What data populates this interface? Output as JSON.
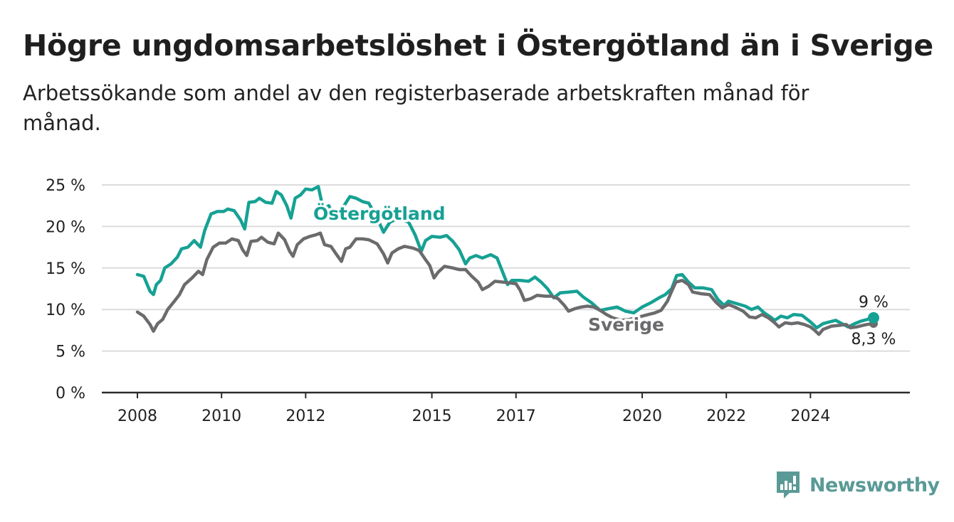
{
  "header": {
    "title": "Högre ungdomsarbetslöshet i Östergötland än i Sverige",
    "subtitle": "Arbetssökande som andel av den registerbaserade arbetskraften månad för månad."
  },
  "brand": {
    "name": "Newsworthy",
    "icon": "newsworthy-chart-icon",
    "color": "#5a9a96"
  },
  "chart_data": {
    "type": "line",
    "xlim": [
      2008,
      2025.5
    ],
    "ylim": [
      0,
      25
    ],
    "x_ticks": [
      {
        "value": 2008,
        "label": "2008"
      },
      {
        "value": 2010,
        "label": "2010"
      },
      {
        "value": 2012,
        "label": "2012"
      },
      {
        "value": 2015,
        "label": "2015"
      },
      {
        "value": 2017,
        "label": "2017"
      },
      {
        "value": 2020,
        "label": "2020"
      },
      {
        "value": 2022,
        "label": "2022"
      },
      {
        "value": 2024,
        "label": "2024"
      }
    ],
    "y_ticks": [
      {
        "value": 0,
        "label": "0 %"
      },
      {
        "value": 5,
        "label": "5 %"
      },
      {
        "value": 10,
        "label": "10 %"
      },
      {
        "value": 15,
        "label": "15 %"
      },
      {
        "value": 20,
        "label": "20 %"
      },
      {
        "value": 25,
        "label": "25 %"
      }
    ],
    "grid": true,
    "series": [
      {
        "name": "Östergötland",
        "color": "#16a194",
        "end_label": "9 %",
        "points": [
          [
            2008.0,
            14.2
          ],
          [
            2008.15,
            14.0
          ],
          [
            2008.3,
            12.2
          ],
          [
            2008.38,
            11.8
          ],
          [
            2008.45,
            13.0
          ],
          [
            2008.55,
            13.5
          ],
          [
            2008.65,
            15.0
          ],
          [
            2008.8,
            15.5
          ],
          [
            2008.95,
            16.3
          ],
          [
            2009.05,
            17.3
          ],
          [
            2009.2,
            17.5
          ],
          [
            2009.35,
            18.3
          ],
          [
            2009.5,
            17.5
          ],
          [
            2009.6,
            19.5
          ],
          [
            2009.75,
            21.5
          ],
          [
            2009.9,
            21.8
          ],
          [
            2010.05,
            21.8
          ],
          [
            2010.15,
            22.1
          ],
          [
            2010.3,
            21.9
          ],
          [
            2010.45,
            20.8
          ],
          [
            2010.55,
            19.7
          ],
          [
            2010.65,
            22.9
          ],
          [
            2010.8,
            23.0
          ],
          [
            2010.9,
            23.4
          ],
          [
            2011.05,
            22.9
          ],
          [
            2011.2,
            22.8
          ],
          [
            2011.3,
            24.2
          ],
          [
            2011.42,
            23.8
          ],
          [
            2011.55,
            22.5
          ],
          [
            2011.65,
            21.0
          ],
          [
            2011.75,
            23.4
          ],
          [
            2011.88,
            23.8
          ],
          [
            2012.0,
            24.5
          ],
          [
            2012.15,
            24.4
          ],
          [
            2012.3,
            24.8
          ],
          [
            2012.42,
            22.0
          ],
          [
            2012.55,
            22.5
          ],
          [
            2012.7,
            20.8
          ],
          [
            2012.85,
            22.0
          ],
          [
            2013.05,
            23.6
          ],
          [
            2013.2,
            23.4
          ],
          [
            2013.35,
            23.0
          ],
          [
            2013.5,
            22.8
          ],
          [
            2013.7,
            21.0
          ],
          [
            2013.85,
            19.3
          ],
          [
            2014.0,
            20.5
          ],
          [
            2014.2,
            21.0
          ],
          [
            2014.45,
            20.5
          ],
          [
            2014.6,
            19.0
          ],
          [
            2014.75,
            17.0
          ],
          [
            2014.85,
            18.3
          ],
          [
            2015.0,
            18.8
          ],
          [
            2015.2,
            18.7
          ],
          [
            2015.35,
            18.9
          ],
          [
            2015.5,
            18.2
          ],
          [
            2015.65,
            17.2
          ],
          [
            2015.8,
            15.5
          ],
          [
            2015.9,
            16.2
          ],
          [
            2016.05,
            16.5
          ],
          [
            2016.2,
            16.2
          ],
          [
            2016.4,
            16.6
          ],
          [
            2016.55,
            16.2
          ],
          [
            2016.7,
            14.3
          ],
          [
            2016.8,
            13.0
          ],
          [
            2016.9,
            13.5
          ],
          [
            2017.1,
            13.5
          ],
          [
            2017.3,
            13.4
          ],
          [
            2017.45,
            13.9
          ],
          [
            2017.6,
            13.3
          ],
          [
            2017.75,
            12.5
          ],
          [
            2017.9,
            11.4
          ],
          [
            2018.05,
            12.0
          ],
          [
            2018.25,
            12.1
          ],
          [
            2018.45,
            12.2
          ],
          [
            2018.6,
            11.5
          ],
          [
            2018.8,
            10.8
          ],
          [
            2019.0,
            9.9
          ],
          [
            2019.2,
            10.1
          ],
          [
            2019.4,
            10.3
          ],
          [
            2019.6,
            9.8
          ],
          [
            2019.8,
            9.6
          ],
          [
            2020.0,
            10.3
          ],
          [
            2020.2,
            10.8
          ],
          [
            2020.4,
            11.4
          ],
          [
            2020.55,
            11.8
          ],
          [
            2020.7,
            12.5
          ],
          [
            2020.82,
            14.1
          ],
          [
            2020.95,
            14.2
          ],
          [
            2021.1,
            13.3
          ],
          [
            2021.25,
            12.6
          ],
          [
            2021.45,
            12.6
          ],
          [
            2021.65,
            12.4
          ],
          [
            2021.8,
            11.2
          ],
          [
            2021.95,
            10.5
          ],
          [
            2022.05,
            11.0
          ],
          [
            2022.25,
            10.7
          ],
          [
            2022.45,
            10.4
          ],
          [
            2022.6,
            10.0
          ],
          [
            2022.75,
            10.3
          ],
          [
            2022.9,
            9.6
          ],
          [
            2023.05,
            9.1
          ],
          [
            2023.15,
            8.7
          ],
          [
            2023.3,
            9.2
          ],
          [
            2023.45,
            9.0
          ],
          [
            2023.6,
            9.4
          ],
          [
            2023.8,
            9.3
          ],
          [
            2024.0,
            8.5
          ],
          [
            2024.15,
            7.8
          ],
          [
            2024.3,
            8.3
          ],
          [
            2024.45,
            8.5
          ],
          [
            2024.6,
            8.7
          ],
          [
            2024.75,
            8.3
          ],
          [
            2024.9,
            7.9
          ],
          [
            2025.05,
            8.3
          ],
          [
            2025.2,
            8.6
          ],
          [
            2025.35,
            8.8
          ],
          [
            2025.5,
            9.0
          ]
        ]
      },
      {
        "name": "Sverige",
        "color": "#6b6b6e",
        "end_label": "8,3 %",
        "points": [
          [
            2008.0,
            9.7
          ],
          [
            2008.15,
            9.2
          ],
          [
            2008.3,
            8.2
          ],
          [
            2008.38,
            7.4
          ],
          [
            2008.48,
            8.3
          ],
          [
            2008.6,
            8.8
          ],
          [
            2008.72,
            10.0
          ],
          [
            2008.88,
            11.0
          ],
          [
            2009.0,
            11.8
          ],
          [
            2009.12,
            13.0
          ],
          [
            2009.3,
            13.8
          ],
          [
            2009.45,
            14.6
          ],
          [
            2009.55,
            14.2
          ],
          [
            2009.65,
            16.0
          ],
          [
            2009.8,
            17.5
          ],
          [
            2009.95,
            18.0
          ],
          [
            2010.1,
            18.0
          ],
          [
            2010.25,
            18.5
          ],
          [
            2010.4,
            18.3
          ],
          [
            2010.5,
            17.2
          ],
          [
            2010.6,
            16.5
          ],
          [
            2010.7,
            18.2
          ],
          [
            2010.85,
            18.3
          ],
          [
            2010.95,
            18.7
          ],
          [
            2011.1,
            18.1
          ],
          [
            2011.25,
            17.9
          ],
          [
            2011.35,
            19.2
          ],
          [
            2011.5,
            18.4
          ],
          [
            2011.62,
            17.0
          ],
          [
            2011.7,
            16.4
          ],
          [
            2011.8,
            17.8
          ],
          [
            2011.95,
            18.5
          ],
          [
            2012.1,
            18.8
          ],
          [
            2012.25,
            19.0
          ],
          [
            2012.35,
            19.2
          ],
          [
            2012.45,
            17.8
          ],
          [
            2012.6,
            17.6
          ],
          [
            2012.75,
            16.5
          ],
          [
            2012.85,
            15.8
          ],
          [
            2012.95,
            17.3
          ],
          [
            2013.05,
            17.5
          ],
          [
            2013.2,
            18.5
          ],
          [
            2013.35,
            18.5
          ],
          [
            2013.5,
            18.4
          ],
          [
            2013.7,
            17.9
          ],
          [
            2013.85,
            16.7
          ],
          [
            2013.95,
            15.6
          ],
          [
            2014.05,
            16.8
          ],
          [
            2014.2,
            17.3
          ],
          [
            2014.35,
            17.6
          ],
          [
            2014.55,
            17.4
          ],
          [
            2014.7,
            17.1
          ],
          [
            2014.85,
            16.0
          ],
          [
            2014.95,
            15.3
          ],
          [
            2015.05,
            13.8
          ],
          [
            2015.15,
            14.5
          ],
          [
            2015.3,
            15.2
          ],
          [
            2015.5,
            15.0
          ],
          [
            2015.65,
            14.8
          ],
          [
            2015.8,
            14.8
          ],
          [
            2015.95,
            14.0
          ],
          [
            2016.1,
            13.3
          ],
          [
            2016.2,
            12.4
          ],
          [
            2016.35,
            12.8
          ],
          [
            2016.5,
            13.4
          ],
          [
            2016.7,
            13.3
          ],
          [
            2016.85,
            13.2
          ],
          [
            2017.0,
            13.1
          ],
          [
            2017.1,
            12.3
          ],
          [
            2017.2,
            11.1
          ],
          [
            2017.35,
            11.3
          ],
          [
            2017.5,
            11.7
          ],
          [
            2017.7,
            11.6
          ],
          [
            2017.85,
            11.6
          ],
          [
            2018.0,
            11.3
          ],
          [
            2018.15,
            10.5
          ],
          [
            2018.25,
            9.8
          ],
          [
            2018.4,
            10.1
          ],
          [
            2018.55,
            10.3
          ],
          [
            2018.7,
            10.4
          ],
          [
            2018.85,
            10.3
          ],
          [
            2019.0,
            9.9
          ],
          [
            2019.15,
            9.4
          ],
          [
            2019.3,
            9.0
          ],
          [
            2019.5,
            8.7
          ],
          [
            2019.7,
            8.8
          ],
          [
            2019.85,
            9.0
          ],
          [
            2020.0,
            9.2
          ],
          [
            2020.15,
            9.4
          ],
          [
            2020.3,
            9.6
          ],
          [
            2020.45,
            9.9
          ],
          [
            2020.6,
            11.0
          ],
          [
            2020.7,
            12.2
          ],
          [
            2020.8,
            13.3
          ],
          [
            2020.95,
            13.5
          ],
          [
            2021.1,
            13.0
          ],
          [
            2021.2,
            12.1
          ],
          [
            2021.4,
            11.9
          ],
          [
            2021.6,
            11.8
          ],
          [
            2021.75,
            10.9
          ],
          [
            2021.9,
            10.2
          ],
          [
            2022.05,
            10.6
          ],
          [
            2022.2,
            10.3
          ],
          [
            2022.4,
            9.8
          ],
          [
            2022.55,
            9.1
          ],
          [
            2022.7,
            9.0
          ],
          [
            2022.85,
            9.4
          ],
          [
            2023.0,
            9.0
          ],
          [
            2023.15,
            8.4
          ],
          [
            2023.25,
            7.9
          ],
          [
            2023.4,
            8.4
          ],
          [
            2023.55,
            8.3
          ],
          [
            2023.7,
            8.4
          ],
          [
            2023.85,
            8.2
          ],
          [
            2024.0,
            7.9
          ],
          [
            2024.1,
            7.5
          ],
          [
            2024.2,
            7.0
          ],
          [
            2024.3,
            7.6
          ],
          [
            2024.5,
            8.0
          ],
          [
            2024.7,
            8.1
          ],
          [
            2024.85,
            8.2
          ],
          [
            2024.95,
            7.8
          ],
          [
            2025.1,
            7.9
          ],
          [
            2025.25,
            8.1
          ],
          [
            2025.35,
            8.2
          ],
          [
            2025.5,
            8.3
          ]
        ]
      }
    ]
  }
}
